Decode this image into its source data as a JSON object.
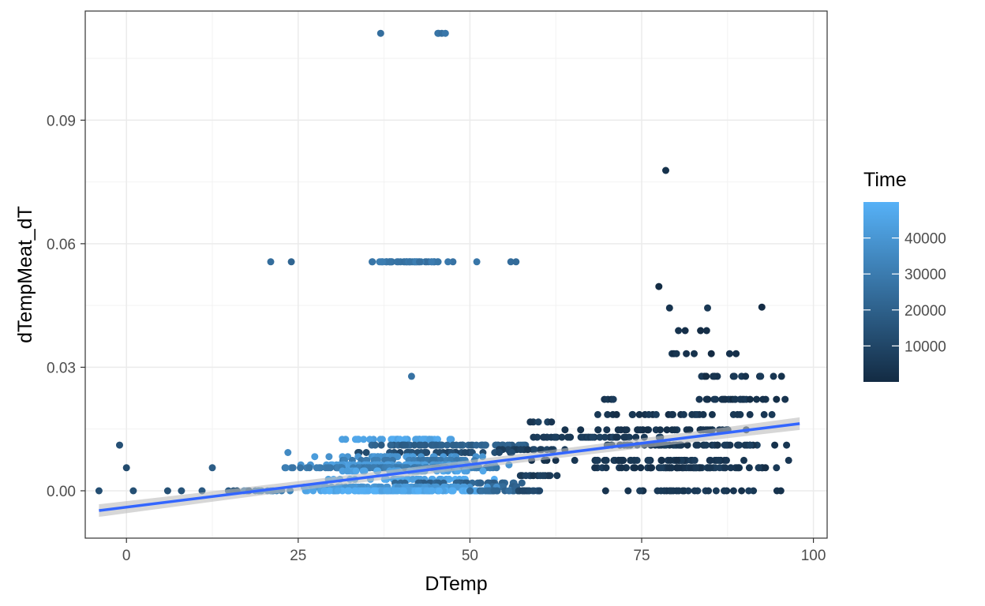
{
  "chart_data": {
    "type": "scatter",
    "xlabel": "DTemp",
    "ylabel": "dTempMeat_dT",
    "x_ticks": [
      "0",
      "25",
      "50",
      "75",
      "100"
    ],
    "x_tick_values": [
      0,
      25,
      50,
      75,
      100
    ],
    "y_ticks": [
      "0.00",
      "0.03",
      "0.06",
      "0.09"
    ],
    "y_tick_values": [
      0.0,
      0.03,
      0.06,
      0.09
    ],
    "xlim": [
      -6,
      102
    ],
    "ylim": [
      -0.0115,
      0.1165
    ],
    "grid": true,
    "legend": {
      "title": "Time",
      "position": "right",
      "type": "colorbar",
      "range": [
        0,
        50000
      ],
      "labels": [
        "10000",
        "20000",
        "30000",
        "40000"
      ],
      "label_values": [
        10000,
        20000,
        30000,
        40000
      ],
      "low_color": "#132B43",
      "high_color": "#56B1F7"
    },
    "trend_line": {
      "color": "#3366FF",
      "band_color": "#BDBDBD",
      "x": [
        -4,
        98
      ],
      "y": [
        -0.0048,
        0.0163
      ]
    },
    "clusters": [
      {
        "x": [
          37,
          37
        ],
        "y": 0.1111,
        "time": 25000,
        "n": 1
      },
      {
        "x": [
          45,
          46.5
        ],
        "y": 0.1111,
        "time": 28000,
        "n": 4
      },
      {
        "x": 78.5,
        "y": 0.0778,
        "time": 3000,
        "n": 1
      },
      {
        "x": 21,
        "y": 0.0556,
        "time": 26000,
        "n": 1
      },
      {
        "x": 24,
        "y": 0.0556,
        "time": 20000,
        "n": 1
      },
      {
        "x": [
          34,
          48.5
        ],
        "y": 0.0556,
        "time": 28000,
        "n": 48
      },
      {
        "x": 51,
        "y": 0.0556,
        "time": 27000,
        "n": 1
      },
      {
        "x": [
          55.5,
          56.8
        ],
        "y": 0.0556,
        "time": 26000,
        "n": 2
      },
      {
        "x": 77.5,
        "y": 0.0496,
        "time": 3000,
        "n": 1
      },
      {
        "x": 92.5,
        "y": 0.0446,
        "time": 3000,
        "n": 1
      },
      {
        "x": [
          79,
          85
        ],
        "y": 0.0444,
        "time": 3000,
        "n": 2
      },
      {
        "x": [
          80,
          86
        ],
        "y": 0.0389,
        "time": 3000,
        "n": 4
      },
      {
        "x": [
          78,
          90
        ],
        "y": 0.0333,
        "time": 3000,
        "n": 8
      },
      {
        "x": 41.5,
        "y": 0.0278,
        "time": 24000,
        "n": 1
      },
      {
        "x": [
          82,
          96
        ],
        "y": 0.0278,
        "time": 3000,
        "n": 14
      },
      {
        "x": [
          80,
          97
        ],
        "y": 0.0222,
        "time": 3000,
        "n": 26
      },
      {
        "x": [
          69,
          72
        ],
        "y": 0.0222,
        "time": 5000,
        "n": 4
      },
      {
        "x": [
          64,
          97
        ],
        "y": 0.0185,
        "time": 4000,
        "n": 28
      },
      {
        "x": [
          58,
          63
        ],
        "y": 0.0167,
        "time": 6000,
        "n": 6
      },
      {
        "x": [
          62,
          98
        ],
        "y": 0.0148,
        "time": 4000,
        "n": 40
      },
      {
        "x": [
          56,
          80
        ],
        "y": 0.013,
        "time": 6000,
        "n": 40
      },
      {
        "x": [
          31,
          50
        ],
        "y": 0.0125,
        "time": 46000,
        "n": 44
      },
      {
        "x": -1,
        "y": 0.0111,
        "time": 15000,
        "n": 1
      },
      {
        "x": [
          33,
          62
        ],
        "y": 0.0111,
        "time": 20000,
        "n": 70
      },
      {
        "x": [
          66,
          98
        ],
        "y": 0.0111,
        "time": 5000,
        "n": 55
      },
      {
        "x": [
          52,
          64
        ],
        "y": 0.01,
        "time": 8000,
        "n": 20
      },
      {
        "x": 23.5,
        "y": 0.0093,
        "time": 33000,
        "n": 1
      },
      {
        "x": [
          33,
          58
        ],
        "y": 0.0093,
        "time": 12000,
        "n": 40
      },
      {
        "x": [
          26,
          52
        ],
        "y": 0.0083,
        "time": 40000,
        "n": 40
      },
      {
        "x": [
          56,
          98
        ],
        "y": 0.0074,
        "time": 4000,
        "n": 60
      },
      {
        "x": [
          30,
          55
        ],
        "y": 0.0074,
        "time": 30000,
        "n": 40
      },
      {
        "x": [
          24,
          56
        ],
        "y": 0.0063,
        "time": 42000,
        "n": 80
      },
      {
        "x": [
          21,
          57
        ],
        "y": 0.0056,
        "time": 30000,
        "n": 110
      },
      {
        "x": [
          66,
          98
        ],
        "y": 0.0056,
        "time": 4000,
        "n": 70
      },
      {
        "x": 0,
        "y": 0.0056,
        "time": 15000,
        "n": 1
      },
      {
        "x": 12.5,
        "y": 0.0056,
        "time": 17000,
        "n": 1
      },
      {
        "x": [
          30,
          52
        ],
        "y": 0.0048,
        "time": 45000,
        "n": 40
      },
      {
        "x": [
          55,
          64
        ],
        "y": 0.0037,
        "time": 7000,
        "n": 14
      },
      {
        "x": [
          27,
          55
        ],
        "y": 0.0028,
        "time": 46000,
        "n": 40
      },
      {
        "x": [
          36,
          62
        ],
        "y": 0.0019,
        "time": 20000,
        "n": 40
      },
      {
        "x": [
          52,
          58
        ],
        "y": 0.001,
        "time": 22000,
        "n": 10
      },
      {
        "x": [
          22,
          55
        ],
        "y": 0.0009,
        "time": 40000,
        "n": 80
      },
      {
        "x": [
          16,
          24
        ],
        "y": 0.0,
        "time": 33000,
        "n": 14
      },
      {
        "x": [
          24,
          59
        ],
        "y": 0.0,
        "time": 47000,
        "n": 130
      },
      {
        "x": [
          48,
          62
        ],
        "y": 0.0,
        "time": 24000,
        "n": 30
      },
      {
        "x": [
          56,
          61
        ],
        "y": 0.0,
        "time": 10000,
        "n": 10
      },
      {
        "x": [
          67,
          97
        ],
        "y": 0.0,
        "time": 4000,
        "n": 30
      },
      {
        "x": -4,
        "y": 0.0,
        "time": 15000,
        "n": 1
      },
      {
        "x": 1,
        "y": 0.0,
        "time": 15000,
        "n": 1
      },
      {
        "x": 6,
        "y": 0.0,
        "time": 15000,
        "n": 1
      },
      {
        "x": 8,
        "y": 0.0,
        "time": 15000,
        "n": 1
      },
      {
        "x": 11,
        "y": 0.0,
        "time": 16000,
        "n": 1
      },
      {
        "x": [
          14,
          18
        ],
        "y": 0.0,
        "time": 17000,
        "n": 4
      }
    ]
  }
}
